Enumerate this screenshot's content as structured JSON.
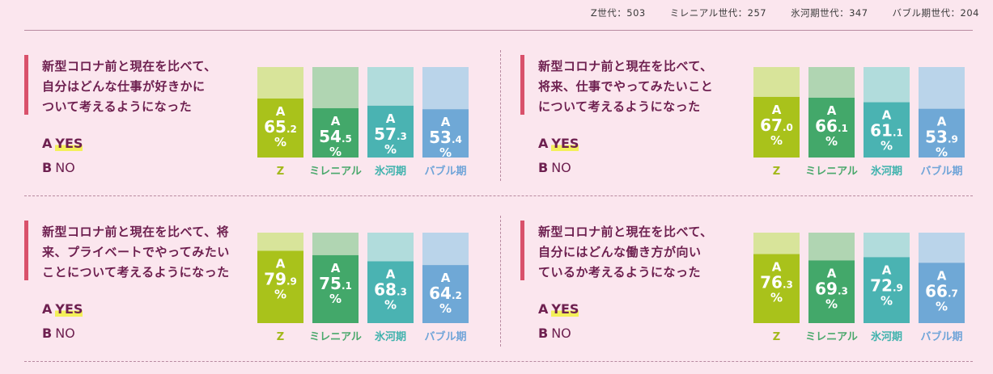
{
  "sample_sizes": [
    {
      "label": "Z世代",
      "sep": "：",
      "value": "503"
    },
    {
      "label": "ミレニアル世代",
      "sep": "：",
      "value": "257"
    },
    {
      "label": "氷河期世代",
      "sep": "：",
      "value": "347"
    },
    {
      "label": "バブル期世代",
      "sep": "：",
      "value": "204"
    }
  ],
  "options": {
    "a_letter": "A",
    "a_text": "YES",
    "b_letter": "B",
    "b_text": "NO"
  },
  "bar_letter": "A",
  "bar_unit": "%",
  "colors": {
    "strong": [
      "#a9c21b",
      "#43a86a",
      "#4ab3b2",
      "#6fa8d6"
    ],
    "light": [
      "#d8e49a",
      "#b0d5b2",
      "#b1dcdc",
      "#bad4ea"
    ],
    "label": [
      "#a2b81a",
      "#4aa86c",
      "#3fb2ad",
      "#6fa4d8"
    ],
    "accent": "#d9516b",
    "question_text": "#6e2050"
  },
  "chart_data": [
    {
      "type": "bar",
      "stacked": true,
      "title": "新型コロナ前と現在を比べて、自分はどんな仕事が好きかについて考えるようになった",
      "title_lines": [
        "新型コロナ前と現在を比べて、",
        "自分はどんな仕事が好きかに",
        "ついて考えるようになった"
      ],
      "categories": [
        "Z",
        "ミレニアル",
        "氷河期",
        "バブル期"
      ],
      "series": [
        {
          "name": "YES",
          "values": [
            65.2,
            54.5,
            57.3,
            53.4
          ]
        }
      ],
      "ylim": [
        0,
        100
      ]
    },
    {
      "type": "bar",
      "stacked": true,
      "title": "新型コロナ前と現在を比べて、将来、仕事でやってみたいことについて考えるようになった",
      "title_lines": [
        "新型コロナ前と現在を比べて、",
        "将来、仕事でやってみたいこと",
        "について考えるようになった"
      ],
      "categories": [
        "Z",
        "ミレニアル",
        "氷河期",
        "バブル期"
      ],
      "series": [
        {
          "name": "YES",
          "values": [
            67.0,
            66.1,
            61.1,
            53.9
          ]
        }
      ],
      "ylim": [
        0,
        100
      ]
    },
    {
      "type": "bar",
      "stacked": true,
      "title": "新型コロナ前と現在を比べて、将来、プライベートでやってみたいことについて考えるようになった",
      "title_lines": [
        "新型コロナ前と現在を比べて、将",
        "来、プライベートでやってみたい",
        "ことについて考えるようになった"
      ],
      "categories": [
        "Z",
        "ミレニアル",
        "氷河期",
        "バブル期"
      ],
      "series": [
        {
          "name": "YES",
          "values": [
            79.9,
            75.1,
            68.3,
            64.2
          ]
        }
      ],
      "ylim": [
        0,
        100
      ]
    },
    {
      "type": "bar",
      "stacked": true,
      "title": "新型コロナ前と現在を比べて、自分にはどんな働き方が向いているか考えるようになった",
      "title_lines": [
        "新型コロナ前と現在を比べて、",
        "自分にはどんな働き方が向い",
        "ているか考えるようになった"
      ],
      "categories": [
        "Z",
        "ミレニアル",
        "氷河期",
        "バブル期"
      ],
      "series": [
        {
          "name": "YES",
          "values": [
            76.3,
            69.3,
            72.9,
            66.7
          ]
        }
      ],
      "ylim": [
        0,
        100
      ]
    }
  ]
}
